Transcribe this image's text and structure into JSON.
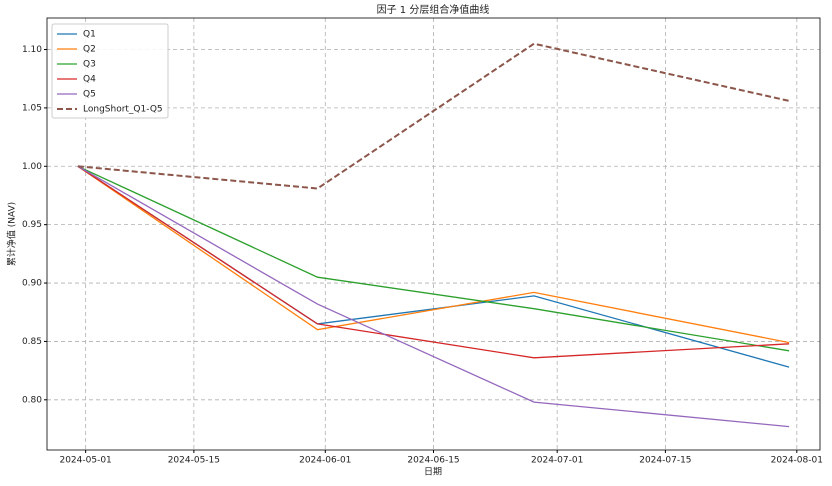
{
  "chart_data": {
    "type": "line",
    "title": "因子 1 分层组合净值曲线",
    "xlabel": "日期",
    "ylabel": "累计净值 (NAV)",
    "x": [
      "2024-04-30",
      "2024-05-31",
      "2024-06-28",
      "2024-07-31"
    ],
    "series": [
      {
        "name": "Q1",
        "color": "#1f77b4",
        "values": [
          1.0,
          0.865,
          0.889,
          0.828
        ]
      },
      {
        "name": "Q2",
        "color": "#ff7f0e",
        "values": [
          1.0,
          0.86,
          0.892,
          0.849
        ]
      },
      {
        "name": "Q3",
        "color": "#2ca02c",
        "values": [
          1.0,
          0.905,
          0.878,
          0.842
        ]
      },
      {
        "name": "Q4",
        "color": "#d62728",
        "values": [
          1.0,
          0.865,
          0.836,
          0.848
        ]
      },
      {
        "name": "Q5",
        "color": "#9467bd",
        "values": [
          1.0,
          0.882,
          0.798,
          0.777
        ]
      },
      {
        "name": "LongShort_Q1-Q5",
        "color": "#8c564b",
        "style": "dashed",
        "values": [
          1.0,
          0.981,
          1.105,
          1.056
        ]
      }
    ],
    "xlim": [
      "2024-04-26",
      "2024-08-04"
    ],
    "xticks": [
      "2024-05-01",
      "2024-05-15",
      "2024-06-01",
      "2024-06-15",
      "2024-07-01",
      "2024-07-15",
      "2024-08-01"
    ],
    "ylim": [
      0.757,
      1.127
    ],
    "yticks": [
      {
        "value": 0.8,
        "label": "0.80"
      },
      {
        "value": 0.85,
        "label": "0.85"
      },
      {
        "value": 0.9,
        "label": "0.90"
      },
      {
        "value": 0.95,
        "label": "0.95"
      },
      {
        "value": 1.0,
        "label": "1.00"
      },
      {
        "value": 1.05,
        "label": "1.05"
      },
      {
        "value": 1.1,
        "label": "1.10"
      }
    ],
    "grid": true,
    "legend": "upper-left"
  }
}
